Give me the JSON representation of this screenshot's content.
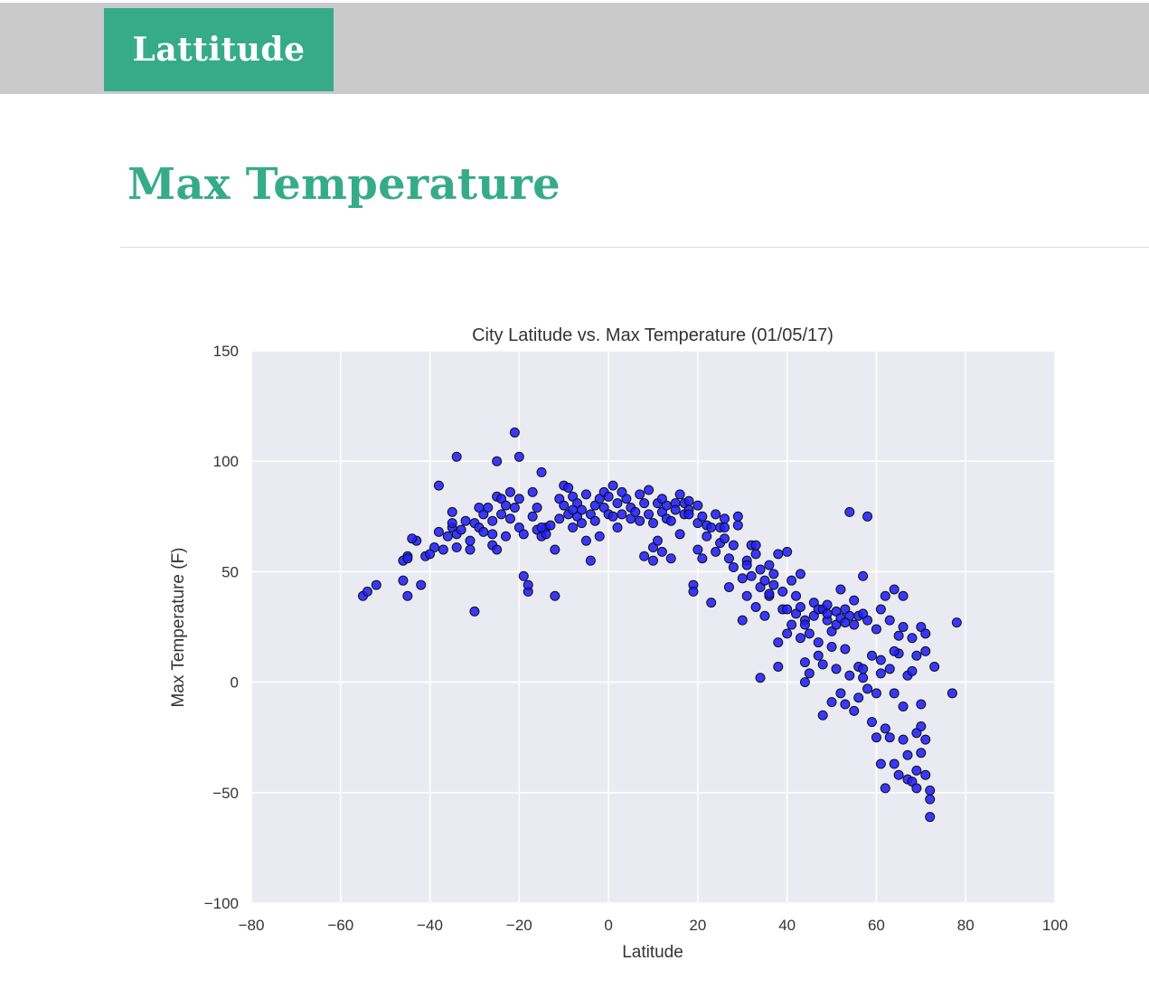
{
  "header": {
    "brand_label": "Lattitude"
  },
  "main": {
    "title": "Max Temperature"
  },
  "colors": {
    "accent": "#36ab87",
    "header_bg": "#c9cac9",
    "plot_bg": "#eaeaf2",
    "marker": "#1f1fff"
  },
  "chart_data": {
    "type": "scatter",
    "title": "City Latitude vs. Max Temperature (01/05/17)",
    "xlabel": "Latitude",
    "ylabel": "Max Temperature (F)",
    "xlim": [
      -80,
      100
    ],
    "ylim": [
      -100,
      150
    ],
    "xticks": [
      -80,
      -60,
      -40,
      -20,
      0,
      20,
      40,
      60,
      80,
      100
    ],
    "yticks": [
      -100,
      -50,
      0,
      50,
      100,
      150
    ],
    "xtick_labels": [
      "−80",
      "−60",
      "−40",
      "−20",
      "0",
      "20",
      "40",
      "60",
      "80",
      "100"
    ],
    "ytick_labels": [
      "−100",
      "−50",
      "0",
      "50",
      "100",
      "150"
    ],
    "grid": true,
    "points": [
      [
        -55,
        39
      ],
      [
        -54,
        41
      ],
      [
        -52,
        44
      ],
      [
        -46,
        55
      ],
      [
        -45,
        57
      ],
      [
        -45,
        56
      ],
      [
        -46,
        46
      ],
      [
        -45,
        39
      ],
      [
        -43,
        64
      ],
      [
        -42,
        44
      ],
      [
        -41,
        57
      ],
      [
        -39,
        61
      ],
      [
        -38,
        68
      ],
      [
        -38,
        89
      ],
      [
        -37,
        60
      ],
      [
        -36,
        66
      ],
      [
        -35,
        70
      ],
      [
        -35,
        77
      ],
      [
        -35,
        72
      ],
      [
        -34,
        67
      ],
      [
        -34,
        61
      ],
      [
        -34,
        102
      ],
      [
        -33,
        69
      ],
      [
        -32,
        73
      ],
      [
        -31,
        64
      ],
      [
        -31,
        60
      ],
      [
        -30,
        32
      ],
      [
        -30,
        72
      ],
      [
        -29,
        70
      ],
      [
        -28,
        68
      ],
      [
        -28,
        76
      ],
      [
        -27,
        79
      ],
      [
        -26,
        62
      ],
      [
        -26,
        73
      ],
      [
        -25,
        60
      ],
      [
        -25,
        84
      ],
      [
        -25,
        100
      ],
      [
        -24,
        76
      ],
      [
        -24,
        83
      ],
      [
        -23,
        66
      ],
      [
        -23,
        80
      ],
      [
        -22,
        74
      ],
      [
        -22,
        86
      ],
      [
        -21,
        113
      ],
      [
        -21,
        79
      ],
      [
        -20,
        70
      ],
      [
        -20,
        102
      ],
      [
        -20,
        83
      ],
      [
        -19,
        67
      ],
      [
        -19,
        48
      ],
      [
        -18,
        41
      ],
      [
        -18,
        44
      ],
      [
        -17,
        86
      ],
      [
        -17,
        75
      ],
      [
        -16,
        79
      ],
      [
        -16,
        69
      ],
      [
        -15,
        66
      ],
      [
        -15,
        95
      ],
      [
        -14,
        70
      ],
      [
        -14,
        67
      ],
      [
        -13,
        71
      ],
      [
        -12,
        39
      ],
      [
        -12,
        60
      ],
      [
        -11,
        83
      ],
      [
        -11,
        74
      ],
      [
        -10,
        89
      ],
      [
        -10,
        80
      ],
      [
        -9,
        76
      ],
      [
        -9,
        88
      ],
      [
        -8,
        84
      ],
      [
        -8,
        70
      ],
      [
        -7,
        81
      ],
      [
        -7,
        75
      ],
      [
        -6,
        78
      ],
      [
        -6,
        72
      ],
      [
        -5,
        85
      ],
      [
        -5,
        64
      ],
      [
        -4,
        76
      ],
      [
        -4,
        55
      ],
      [
        -3,
        80
      ],
      [
        -3,
        73
      ],
      [
        -2,
        83
      ],
      [
        -2,
        66
      ],
      [
        -1,
        79
      ],
      [
        -1,
        86
      ],
      [
        0,
        76
      ],
      [
        0,
        84
      ],
      [
        1,
        75
      ],
      [
        1,
        89
      ],
      [
        2,
        81
      ],
      [
        2,
        70
      ],
      [
        3,
        76
      ],
      [
        4,
        83
      ],
      [
        5,
        74
      ],
      [
        5,
        79
      ],
      [
        6,
        77
      ],
      [
        7,
        73
      ],
      [
        7,
        85
      ],
      [
        8,
        57
      ],
      [
        8,
        81
      ],
      [
        9,
        76
      ],
      [
        9,
        87
      ],
      [
        10,
        61
      ],
      [
        10,
        55
      ],
      [
        10,
        72
      ],
      [
        11,
        81
      ],
      [
        11,
        64
      ],
      [
        12,
        77
      ],
      [
        12,
        59
      ],
      [
        13,
        80
      ],
      [
        13,
        74
      ],
      [
        14,
        56
      ],
      [
        14,
        73
      ],
      [
        15,
        81
      ],
      [
        15,
        78
      ],
      [
        16,
        85
      ],
      [
        16,
        67
      ],
      [
        17,
        81
      ],
      [
        17,
        76
      ],
      [
        18,
        82
      ],
      [
        18,
        78
      ],
      [
        19,
        44
      ],
      [
        19,
        41
      ],
      [
        20,
        80
      ],
      [
        20,
        72
      ],
      [
        20,
        60
      ],
      [
        21,
        75
      ],
      [
        21,
        56
      ],
      [
        22,
        71
      ],
      [
        22,
        66
      ],
      [
        23,
        36
      ],
      [
        23,
        70
      ],
      [
        24,
        76
      ],
      [
        24,
        59
      ],
      [
        25,
        70
      ],
      [
        25,
        63
      ],
      [
        26,
        65
      ],
      [
        26,
        74
      ],
      [
        27,
        56
      ],
      [
        27,
        43
      ],
      [
        28,
        52
      ],
      [
        28,
        62
      ],
      [
        29,
        71
      ],
      [
        29,
        75
      ],
      [
        30,
        47
      ],
      [
        30,
        28
      ],
      [
        31,
        55
      ],
      [
        31,
        39
      ],
      [
        32,
        48
      ],
      [
        32,
        62
      ],
      [
        33,
        58
      ],
      [
        33,
        34
      ],
      [
        33,
        62
      ],
      [
        34,
        51
      ],
      [
        34,
        43
      ],
      [
        34,
        2
      ],
      [
        35,
        46
      ],
      [
        35,
        30
      ],
      [
        36,
        39
      ],
      [
        36,
        53
      ],
      [
        37,
        44
      ],
      [
        37,
        49
      ],
      [
        38,
        18
      ],
      [
        38,
        58
      ],
      [
        38,
        7
      ],
      [
        39,
        33
      ],
      [
        39,
        41
      ],
      [
        40,
        59
      ],
      [
        40,
        22
      ],
      [
        41,
        46
      ],
      [
        41,
        26
      ],
      [
        42,
        31
      ],
      [
        42,
        39
      ],
      [
        43,
        20
      ],
      [
        43,
        49
      ],
      [
        43,
        34
      ],
      [
        44,
        28
      ],
      [
        44,
        9
      ],
      [
        44,
        0
      ],
      [
        45,
        22
      ],
      [
        45,
        4
      ],
      [
        46,
        36
      ],
      [
        46,
        30
      ],
      [
        47,
        18
      ],
      [
        47,
        33
      ],
      [
        47,
        12
      ],
      [
        48,
        33
      ],
      [
        48,
        8
      ],
      [
        48,
        -15
      ],
      [
        49,
        28
      ],
      [
        49,
        35
      ],
      [
        50,
        23
      ],
      [
        50,
        16
      ],
      [
        50,
        -9
      ],
      [
        51,
        26
      ],
      [
        51,
        32
      ],
      [
        51,
        6
      ],
      [
        52,
        -5
      ],
      [
        52,
        29
      ],
      [
        52,
        42
      ],
      [
        53,
        33
      ],
      [
        53,
        15
      ],
      [
        53,
        -10
      ],
      [
        54,
        77
      ],
      [
        54,
        30
      ],
      [
        54,
        3
      ],
      [
        55,
        26
      ],
      [
        55,
        -13
      ],
      [
        55,
        37
      ],
      [
        56,
        7
      ],
      [
        56,
        30
      ],
      [
        56,
        -7
      ],
      [
        57,
        48
      ],
      [
        57,
        2
      ],
      [
        57,
        6
      ],
      [
        58,
        75
      ],
      [
        58,
        28
      ],
      [
        58,
        -3
      ],
      [
        59,
        -18
      ],
      [
        59,
        12
      ],
      [
        60,
        -25
      ],
      [
        60,
        24
      ],
      [
        60,
        -5
      ],
      [
        61,
        33
      ],
      [
        61,
        10
      ],
      [
        61,
        -37
      ],
      [
        62,
        39
      ],
      [
        62,
        -21
      ],
      [
        62,
        -48
      ],
      [
        63,
        28
      ],
      [
        63,
        6
      ],
      [
        63,
        -25
      ],
      [
        64,
        42
      ],
      [
        64,
        -5
      ],
      [
        64,
        -37
      ],
      [
        65,
        21
      ],
      [
        65,
        -42
      ],
      [
        65,
        13
      ],
      [
        66,
        39
      ],
      [
        66,
        25
      ],
      [
        66,
        -11
      ],
      [
        67,
        -44
      ],
      [
        67,
        3
      ],
      [
        67,
        -33
      ],
      [
        68,
        20
      ],
      [
        68,
        -45
      ],
      [
        68,
        5
      ],
      [
        69,
        12
      ],
      [
        69,
        -48
      ],
      [
        69,
        -23
      ],
      [
        70,
        25
      ],
      [
        70,
        -32
      ],
      [
        70,
        -10
      ],
      [
        71,
        -26
      ],
      [
        71,
        14
      ],
      [
        71,
        -42
      ],
      [
        71,
        22
      ],
      [
        72,
        -53
      ],
      [
        72,
        -61
      ],
      [
        73,
        7
      ],
      [
        77,
        -5
      ],
      [
        78,
        27
      ],
      [
        -44,
        65
      ],
      [
        -40,
        58
      ],
      [
        -29,
        79
      ],
      [
        -26,
        67
      ],
      [
        -15,
        70
      ],
      [
        -8,
        78
      ],
      [
        3,
        86
      ],
      [
        12,
        83
      ],
      [
        18,
        76
      ],
      [
        26,
        70
      ],
      [
        31,
        53
      ],
      [
        36,
        40
      ],
      [
        40,
        33
      ],
      [
        44,
        26
      ],
      [
        49,
        31
      ],
      [
        53,
        27
      ],
      [
        57,
        31
      ],
      [
        61,
        4
      ],
      [
        64,
        14
      ],
      [
        66,
        -26
      ],
      [
        69,
        -40
      ],
      [
        70,
        -20
      ],
      [
        72,
        -49
      ]
    ]
  }
}
